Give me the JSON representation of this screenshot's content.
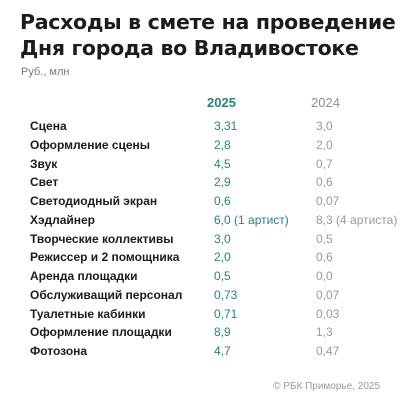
{
  "title": [
    "Расходы в смете на проведение",
    "Дня города во Владивостоке"
  ],
  "unit": "Руб., млн",
  "columns": {
    "year_a": "2025",
    "year_b": "2024"
  },
  "rows": [
    {
      "label": "Сцена",
      "v2025": "3,31",
      "v2024": "3,0"
    },
    {
      "label": "Оформление сцены",
      "v2025": "2,8",
      "v2024": "2,0"
    },
    {
      "label": "Звук",
      "v2025": "4,5",
      "v2024": "0,7"
    },
    {
      "label": "Свет",
      "v2025": "2,9",
      "v2024": "0,6"
    },
    {
      "label": "Светодиодный экран",
      "v2025": "0,6",
      "v2024": "0,07"
    },
    {
      "label": "Хэдлайнер",
      "v2025": "6,0 (1 артист)",
      "v2024": "8,3 (4 артиста)"
    },
    {
      "label": "Творческие коллективы",
      "v2025": "3,0",
      "v2024": "0,5"
    },
    {
      "label": "Режиссер и 2 помощника",
      "v2025": "2,0",
      "v2024": "0,6"
    },
    {
      "label": "Аренда площадки",
      "v2025": "0,5",
      "v2024": "0,0"
    },
    {
      "label": "Обслуживащий персонал",
      "v2025": "0,73",
      "v2024": "0,07"
    },
    {
      "label": "Туалетные кабинки",
      "v2025": "0,71",
      "v2024": "0,03"
    },
    {
      "label": "Оформление площадки",
      "v2025": "8,9",
      "v2024": "1,3"
    },
    {
      "label": "Фотозона",
      "v2025": "4,7",
      "v2024": "0,47"
    }
  ],
  "footer": "© РБК Приморье, 2025",
  "colors": {
    "accent": "#2f7f83",
    "muted": "#9a9a9a",
    "text": "#1c1c1c"
  }
}
